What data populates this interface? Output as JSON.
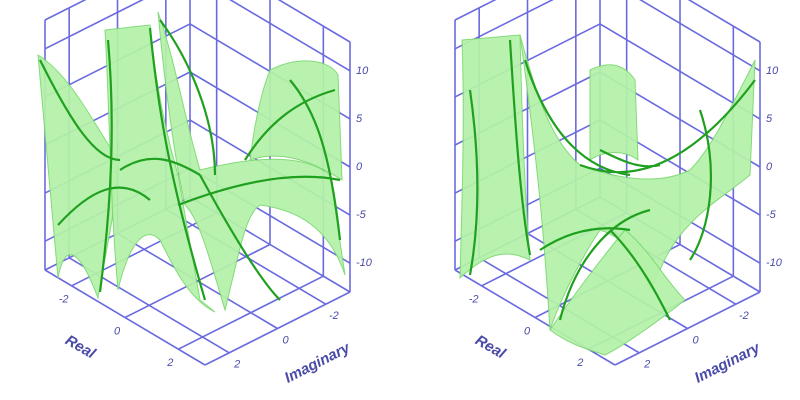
{
  "chart_data": [
    {
      "type": "surface3d",
      "xlabel": "Real",
      "ylabel": "Imaginary",
      "xlim": [
        -3,
        3
      ],
      "ylim": [
        -3,
        3
      ],
      "zlim": [
        -13,
        13
      ],
      "xticks": [
        -2,
        0,
        2
      ],
      "yticks": [
        -2,
        0,
        2
      ],
      "zticks": [
        -10,
        -5,
        0,
        5,
        10
      ],
      "color": "#b4f2a8",
      "grid": true
    },
    {
      "type": "surface3d",
      "xlabel": "Real",
      "ylabel": "Imaginary",
      "xlim": [
        -3,
        3
      ],
      "ylim": [
        -3,
        3
      ],
      "zlim": [
        -13,
        13
      ],
      "xticks": [
        -2,
        0,
        2
      ],
      "yticks": [
        -2,
        0,
        2
      ],
      "zticks": [
        -10,
        -5,
        0,
        5,
        10
      ],
      "color": "#b4f2a8",
      "grid": true
    }
  ]
}
